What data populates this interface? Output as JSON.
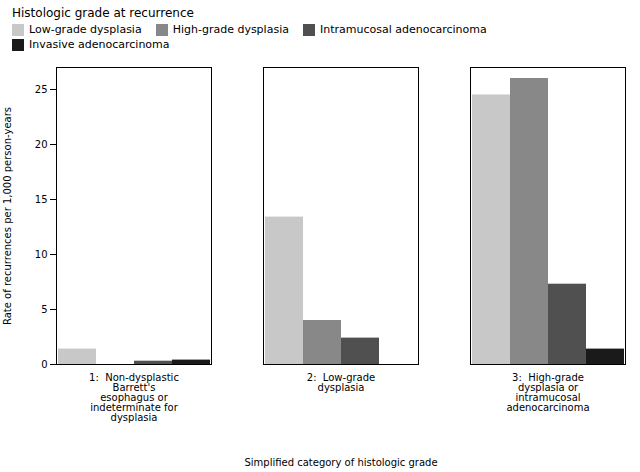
{
  "chart_data": {
    "type": "bar",
    "title": "Histologic grade at recurrence",
    "xlabel": "Simplified category of histologic grade",
    "ylabel": "Rate of recurrences per 1,000 person-years",
    "categories": [
      "1:  Non-dysplastic\nBarrett's\nesophagus or\nindeterminate for\ndysplasia",
      "2:  Low-grade\ndysplasia",
      "3:  High-grade\ndysplasia or\nintramucosal\nadenocarcinoma"
    ],
    "series": [
      {
        "name": "Low-grade dysplasia",
        "color": "#C8C8C8",
        "values": [
          1.4,
          13.4,
          24.5
        ]
      },
      {
        "name": "High-grade dysplasia",
        "color": "#888888",
        "values": [
          0.0,
          4.0,
          26.0
        ]
      },
      {
        "name": "Intramucosal adenocarcinoma",
        "color": "#505050",
        "values": [
          0.3,
          2.4,
          7.3
        ]
      },
      {
        "name": "Invasive adenocarcinoma",
        "color": "#1a1a1a",
        "values": [
          0.4,
          0.0,
          1.4
        ]
      }
    ],
    "ylim": [
      0,
      27
    ],
    "yticks": [
      0,
      5,
      10,
      15,
      20,
      25
    ],
    "legend": "upper left",
    "grid": false
  }
}
